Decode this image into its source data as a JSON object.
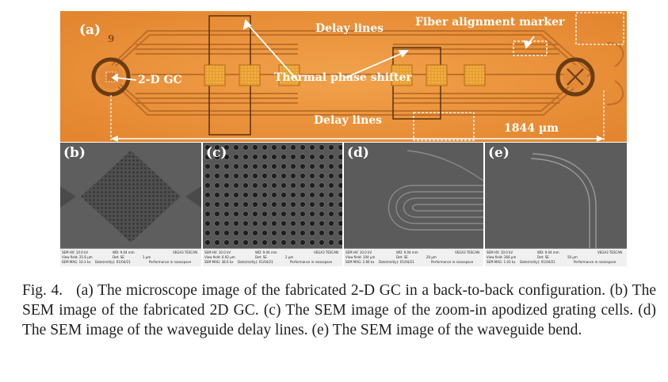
{
  "panel_a": {
    "tag": "(a)",
    "mark": "9",
    "labels": {
      "delay_top": "Delay lines",
      "delay_bottom": "Delay lines",
      "fiber_marker": "Fiber alignment marker",
      "gc": "2-D GC",
      "shifter": "Thermal phase shifter",
      "length": "1844 µm"
    }
  },
  "sem_panels": [
    {
      "tag": "(b)",
      "info": [
        "SEM HV: 10.0 kV",
        "WD: 9.04 mm",
        "VEGA3 TESCAN",
        "View field: 25.6 µm",
        "Det: SE",
        "1 µm",
        "SEM MAG: 10.3 kx",
        "Date(m/d/y): 01/04/21",
        "Performance in nanospace"
      ]
    },
    {
      "tag": "(c)",
      "info": [
        "SEM HV: 10.0 kV",
        "WD: 9.04 mm",
        "VEGA3 TESCAN",
        "View field: 6.92 µm",
        "Det: SE",
        "2 µm",
        "SEM MAG: 38.0 kx",
        "Date(m/d/y): 01/04/21",
        "Performance in nanospace"
      ]
    },
    {
      "tag": "(d)",
      "info": [
        "SEM HV: 10.0 kV",
        "WD: 9.04 mm",
        "VEGA3 TESCAN",
        "View field: 104 µm",
        "Det: SE",
        "20 µm",
        "SEM MAG: 2.66 kx",
        "Date(m/d/y): 01/04/21",
        "Performance in nanospace"
      ]
    },
    {
      "tag": "(e)",
      "info": [
        "SEM HV: 10.0 kV",
        "WD: 9.04 mm",
        "VEGA3 TESCAN",
        "View field: 266 µm",
        "Det: SE",
        "50 µm",
        "SEM MAG: 1.03 kx",
        "Date(m/d/y): 01/04/21",
        "Performance in nanospace"
      ]
    }
  ],
  "caption": {
    "fig_label": "Fig. 4.",
    "text": "(a) The microscope image of the fabricated 2-D GC in a back-to-back configuration. (b) The SEM image of the fabricated 2D GC. (c) The SEM image of the zoom-in apodized grating cells. (d) The SEM image of the waveguide delay lines. (e) The SEM image of the waveguide bend."
  },
  "colors": {
    "orange": "#e8923a",
    "sem_gray": "#5d5d5d",
    "annotation": "#ffffff"
  }
}
